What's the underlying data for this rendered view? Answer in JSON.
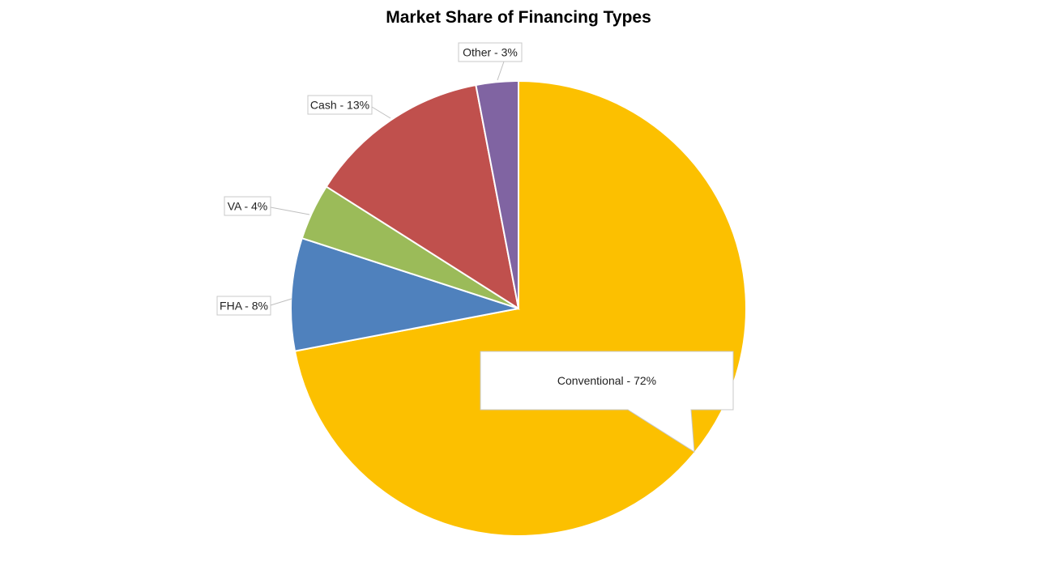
{
  "chart_data": {
    "type": "pie",
    "title": "Market Share of Financing Types",
    "slices": [
      {
        "label": "Conventional",
        "value": 72,
        "display": "Conventional - 72%",
        "color": "#FCC000"
      },
      {
        "label": "FHA",
        "value": 8,
        "display": "FHA - 8%",
        "color": "#4F81BD"
      },
      {
        "label": "VA",
        "value": 4,
        "display": "VA - 4%",
        "color": "#9BBB59"
      },
      {
        "label": "Cash",
        "value": 13,
        "display": "Cash - 13%",
        "color": "#C0504D"
      },
      {
        "label": "Other",
        "value": 3,
        "display": "Other - 3%",
        "color": "#8064A2"
      }
    ],
    "start_angle": "12 o'clock",
    "direction": "clockwise",
    "legend": "none"
  }
}
